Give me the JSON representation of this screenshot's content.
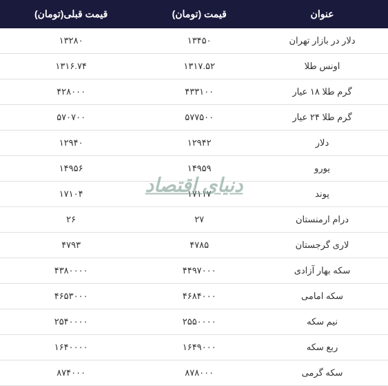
{
  "table": {
    "headers": {
      "title": "عنوان",
      "price": "قیمت (تومان)",
      "prev_price": "قیمت قبلی(تومان)"
    },
    "header_bg": "#1a1a3d",
    "header_color": "#ffffff",
    "border_color": "#e0e0e0",
    "rows": [
      {
        "title": "دلار در بازار تهران",
        "price": "۱۳۴۵۰",
        "prev_price": "۱۳۲۸۰"
      },
      {
        "title": "اونس طلا",
        "price": "۱۳۱۷.۵۲",
        "prev_price": "۱۳۱۶.۷۴"
      },
      {
        "title": "گرم طلا ۱۸ عیار",
        "price": "۴۳۳۱۰۰",
        "prev_price": "۴۲۸۰۰۰"
      },
      {
        "title": "گرم طلا ۲۴ عیار",
        "price": "۵۷۷۵۰۰",
        "prev_price": "۵۷۰۷۰۰"
      },
      {
        "title": "دلار",
        "price": "۱۲۹۴۲",
        "prev_price": "۱۲۹۴۰"
      },
      {
        "title": "یورو",
        "price": "۱۴۹۵۹",
        "prev_price": "۱۴۹۵۶"
      },
      {
        "title": "پوند",
        "price": "۱۷۱۱۷",
        "prev_price": "۱۷۱۰۴"
      },
      {
        "title": "درام ارمنستان",
        "price": "۲۷",
        "prev_price": "۲۶"
      },
      {
        "title": "لاری گرجستان",
        "price": "۴۷۸۵",
        "prev_price": "۴۷۹۳"
      },
      {
        "title": "سکه بهار آزادی",
        "price": "۴۴۹۷۰۰۰",
        "prev_price": "۴۳۸۰۰۰۰"
      },
      {
        "title": "سکه امامی",
        "price": "۴۶۸۴۰۰۰",
        "prev_price": "۴۶۵۳۰۰۰"
      },
      {
        "title": "نیم سکه",
        "price": "۲۵۵۰۰۰۰",
        "prev_price": "۲۵۴۰۰۰۰"
      },
      {
        "title": "ربع سکه",
        "price": "۱۶۴۹۰۰۰",
        "prev_price": "۱۶۴۰۰۰۰"
      },
      {
        "title": "سکه گرمی",
        "price": "۸۷۸۰۰۰",
        "prev_price": "۸۷۴۰۰۰"
      }
    ]
  },
  "watermark": {
    "text": "دنیای اقتصاد",
    "color": "#7a9b8e"
  }
}
